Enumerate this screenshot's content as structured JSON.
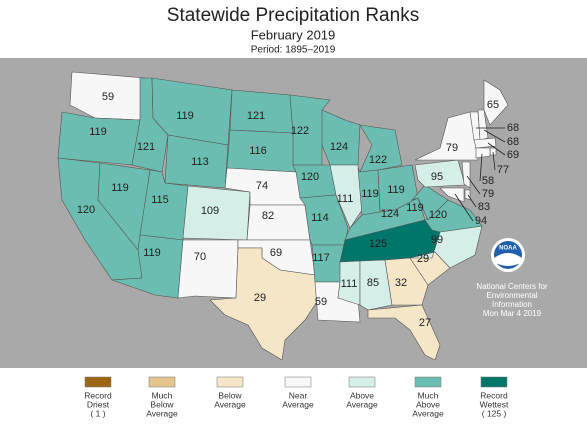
{
  "header": {
    "title": "Statewide Precipitation Ranks",
    "subtitle": "February 2019",
    "period": "Period: 1895–2019"
  },
  "states": [
    {
      "label": "59",
      "color": "#f7f7f7"
    },
    {
      "label": "119",
      "color": "#6cbdb1"
    },
    {
      "label": "120",
      "color": "#6cbdb1"
    },
    {
      "label": "119",
      "color": "#6cbdb1"
    },
    {
      "label": "121",
      "color": "#6cbdb1"
    },
    {
      "label": "119",
      "color": "#6cbdb1"
    },
    {
      "label": "113",
      "color": "#6cbdb1"
    },
    {
      "label": "115",
      "color": "#6cbdb1"
    },
    {
      "label": "119",
      "color": "#6cbdb1"
    },
    {
      "label": "109",
      "color": "#d5eee8"
    },
    {
      "label": "70",
      "color": "#f7f7f7"
    },
    {
      "label": "121",
      "color": "#6cbdb1"
    },
    {
      "label": "116",
      "color": "#6cbdb1"
    },
    {
      "label": "74",
      "color": "#f7f7f7"
    },
    {
      "label": "82",
      "color": "#f7f7f7"
    },
    {
      "label": "69",
      "color": "#f7f7f7"
    },
    {
      "label": "29",
      "color": "#f5e6c7"
    },
    {
      "label": "122",
      "color": "#6cbdb1"
    },
    {
      "label": "120",
      "color": "#6cbdb1"
    },
    {
      "label": "114",
      "color": "#6cbdb1"
    },
    {
      "label": "117",
      "color": "#6cbdb1"
    },
    {
      "label": "59",
      "color": "#f7f7f7"
    },
    {
      "label": "124",
      "color": "#6cbdb1"
    },
    {
      "label": "111",
      "color": "#d5eee8"
    },
    {
      "label": "122",
      "color": "#6cbdb1"
    },
    {
      "label": "119",
      "color": "#6cbdb1"
    },
    {
      "label": "119",
      "color": "#6cbdb1"
    },
    {
      "label": "124",
      "color": "#6cbdb1"
    },
    {
      "label": "125",
      "color": "#00756a"
    },
    {
      "label": "111",
      "color": "#d5eee8"
    },
    {
      "label": "85",
      "color": "#d5eee8"
    },
    {
      "label": "32",
      "color": "#f5e6c7"
    },
    {
      "label": "27",
      "color": "#f5e6c7"
    },
    {
      "label": "29",
      "color": "#f5e6c7"
    },
    {
      "label": "99",
      "color": "#d5eee8"
    },
    {
      "label": "120",
      "color": "#6cbdb1"
    },
    {
      "label": "119",
      "color": "#6cbdb1"
    },
    {
      "label": "95",
      "color": "#d5eee8"
    },
    {
      "label": "79",
      "color": "#f7f7f7"
    },
    {
      "label": "65",
      "color": "#f7f7f7"
    },
    {
      "label": "68",
      "color": "#f7f7f7"
    },
    {
      "label": "68",
      "color": "#f7f7f7"
    },
    {
      "label": "69",
      "color": "#f7f7f7"
    },
    {
      "label": "77",
      "color": "#f7f7f7"
    },
    {
      "label": "58",
      "color": "#f7f7f7"
    },
    {
      "label": "79",
      "color": "#f7f7f7"
    },
    {
      "label": "83",
      "color": "#f7f7f7"
    },
    {
      "label": "94",
      "color": "#f7f7f7"
    }
  ],
  "legend": [
    {
      "lines": [
        "Record",
        "Driest",
        "( 1 )"
      ],
      "color": "#9c6615"
    },
    {
      "lines": [
        "Much",
        "Below",
        "Average"
      ],
      "color": "#e2c68d"
    },
    {
      "lines": [
        "Below",
        "Average"
      ],
      "color": "#f5e6c7"
    },
    {
      "lines": [
        "Near",
        "Average"
      ],
      "color": "#f7f7f7"
    },
    {
      "lines": [
        "Above",
        "Average"
      ],
      "color": "#d5eee8"
    },
    {
      "lines": [
        "Much",
        "Above",
        "Average"
      ],
      "color": "#6cbdb1"
    },
    {
      "lines": [
        "Record",
        "Wettest",
        "( 125 )"
      ],
      "color": "#00756a"
    }
  ],
  "credit": {
    "logo": "NOAA",
    "lines": [
      "National Centers for",
      "Environmental",
      "Information",
      "Mon Mar  4 2019"
    ]
  }
}
